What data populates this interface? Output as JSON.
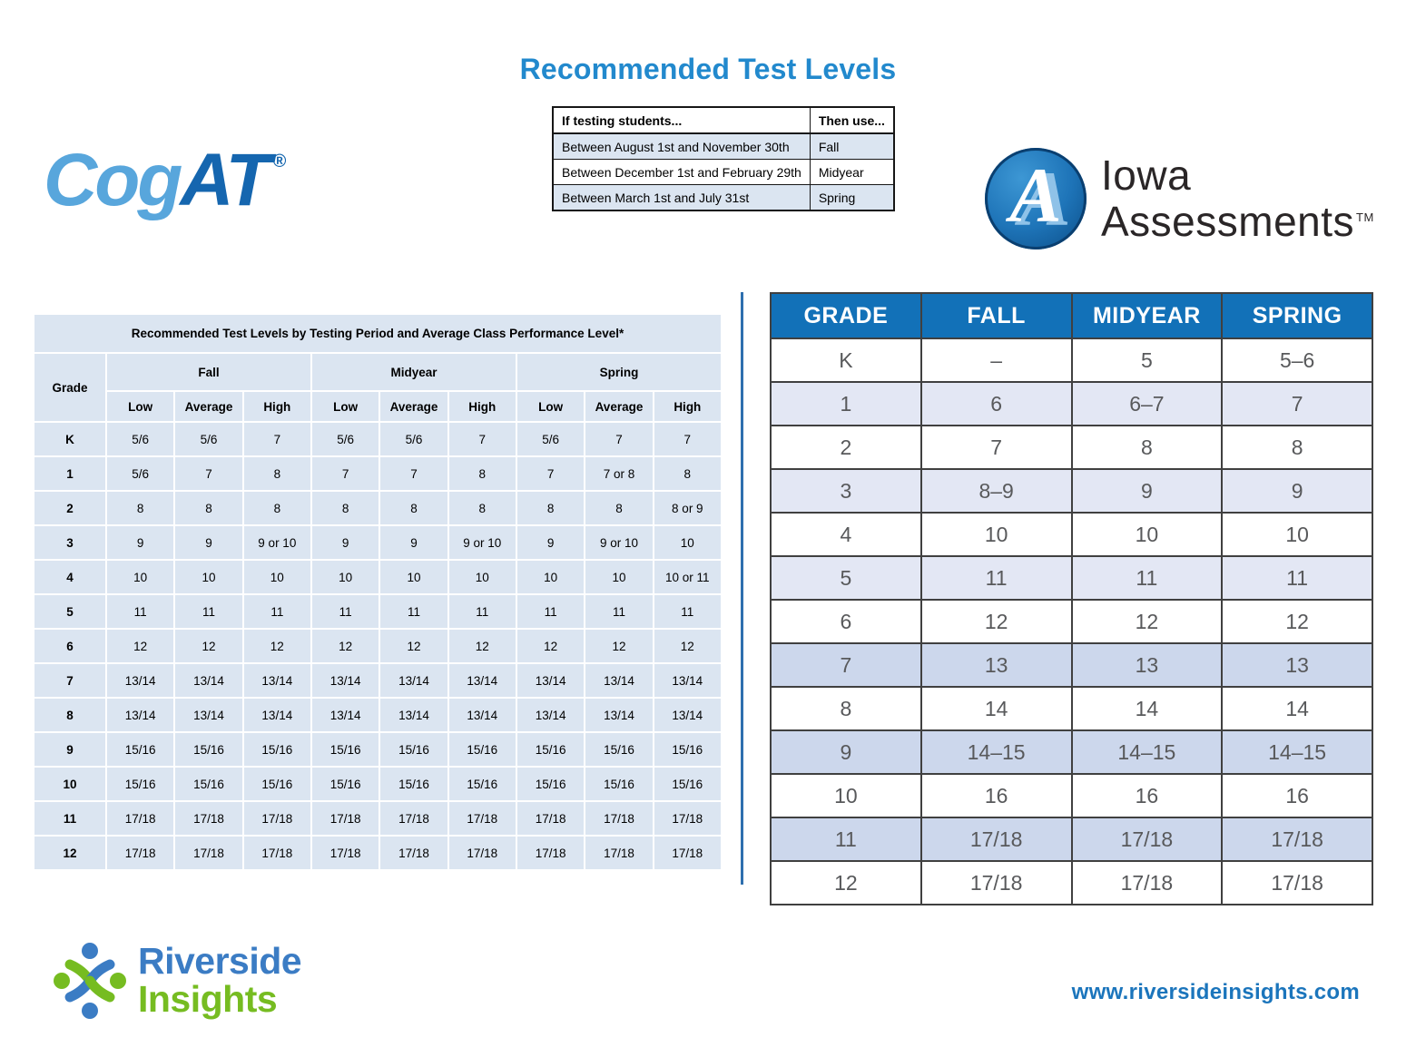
{
  "title": "Recommended Test Levels",
  "website": "www.riversideinsights.com",
  "colors": {
    "title_blue": "#2289cd",
    "right_table_header_blue": "#1271b8",
    "table_cell_light_blue": "#dbe5f1",
    "right_row_light": "#e3e7f4",
    "right_row_medium": "#ccd7ec",
    "right_table_text_gray": "#58595b",
    "divider_blue": "#2e6fae",
    "cogat_light_blue": "#58a6dc",
    "cogat_dark_blue": "#1566af",
    "riverside_blue": "#3b7cc4",
    "riverside_green": "#76bc21",
    "website_blue": "#1b75bc"
  },
  "logos": {
    "cogat": {
      "part1": "Cog",
      "part2": "AT",
      "registered": "®"
    },
    "iowa": {
      "letter": "A",
      "line1": "Iowa",
      "line2": "Assessments",
      "trademark": "TM"
    },
    "riverside": {
      "line1": "Riverside",
      "line2": "Insights"
    }
  },
  "period_table": {
    "headers": [
      "If testing students...",
      "Then use..."
    ],
    "rows": [
      [
        "Between August 1st and November 30th",
        "Fall"
      ],
      [
        "Between December 1st and February 29th",
        "Midyear"
      ],
      [
        "Between March 1st  and July 31st",
        "Spring"
      ]
    ]
  },
  "left_table": {
    "title": "Recommended Test Levels by Testing Period and Average Class Performance Level*",
    "grade_label": "Grade",
    "periods": [
      "Fall",
      "Midyear",
      "Spring"
    ],
    "levels": [
      "Low",
      "Average",
      "High"
    ],
    "rows": [
      {
        "grade": "K",
        "values": [
          "5/6",
          "5/6",
          "7",
          "5/6",
          "5/6",
          "7",
          "5/6",
          "7",
          "7"
        ]
      },
      {
        "grade": "1",
        "values": [
          "5/6",
          "7",
          "8",
          "7",
          "7",
          "8",
          "7",
          "7 or 8",
          "8"
        ]
      },
      {
        "grade": "2",
        "values": [
          "8",
          "8",
          "8",
          "8",
          "8",
          "8",
          "8",
          "8",
          "8 or 9"
        ]
      },
      {
        "grade": "3",
        "values": [
          "9",
          "9",
          "9 or 10",
          "9",
          "9",
          "9 or 10",
          "9",
          "9 or 10",
          "10"
        ]
      },
      {
        "grade": "4",
        "values": [
          "10",
          "10",
          "10",
          "10",
          "10",
          "10",
          "10",
          "10",
          "10 or 11"
        ]
      },
      {
        "grade": "5",
        "values": [
          "11",
          "11",
          "11",
          "11",
          "11",
          "11",
          "11",
          "11",
          "11"
        ]
      },
      {
        "grade": "6",
        "values": [
          "12",
          "12",
          "12",
          "12",
          "12",
          "12",
          "12",
          "12",
          "12"
        ]
      },
      {
        "grade": "7",
        "values": [
          "13/14",
          "13/14",
          "13/14",
          "13/14",
          "13/14",
          "13/14",
          "13/14",
          "13/14",
          "13/14"
        ]
      },
      {
        "grade": "8",
        "values": [
          "13/14",
          "13/14",
          "13/14",
          "13/14",
          "13/14",
          "13/14",
          "13/14",
          "13/14",
          "13/14"
        ]
      },
      {
        "grade": "9",
        "values": [
          "15/16",
          "15/16",
          "15/16",
          "15/16",
          "15/16",
          "15/16",
          "15/16",
          "15/16",
          "15/16"
        ]
      },
      {
        "grade": "10",
        "values": [
          "15/16",
          "15/16",
          "15/16",
          "15/16",
          "15/16",
          "15/16",
          "15/16",
          "15/16",
          "15/16"
        ]
      },
      {
        "grade": "11",
        "values": [
          "17/18",
          "17/18",
          "17/18",
          "17/18",
          "17/18",
          "17/18",
          "17/18",
          "17/18",
          "17/18"
        ]
      },
      {
        "grade": "12",
        "values": [
          "17/18",
          "17/18",
          "17/18",
          "17/18",
          "17/18",
          "17/18",
          "17/18",
          "17/18",
          "17/18"
        ]
      }
    ]
  },
  "right_table": {
    "headers": [
      "GRADE",
      "FALL",
      "MIDYEAR",
      "SPRING"
    ],
    "rows": [
      {
        "cells": [
          "K",
          "–",
          "5",
          "5–6"
        ],
        "shade": "none"
      },
      {
        "cells": [
          "1",
          "6",
          "6–7",
          "7"
        ],
        "shade": "light"
      },
      {
        "cells": [
          "2",
          "7",
          "8",
          "8"
        ],
        "shade": "none"
      },
      {
        "cells": [
          "3",
          "8–9",
          "9",
          "9"
        ],
        "shade": "light"
      },
      {
        "cells": [
          "4",
          "10",
          "10",
          "10"
        ],
        "shade": "none"
      },
      {
        "cells": [
          "5",
          "11",
          "11",
          "11"
        ],
        "shade": "light"
      },
      {
        "cells": [
          "6",
          "12",
          "12",
          "12"
        ],
        "shade": "none"
      },
      {
        "cells": [
          "7",
          "13",
          "13",
          "13"
        ],
        "shade": "medium"
      },
      {
        "cells": [
          "8",
          "14",
          "14",
          "14"
        ],
        "shade": "none"
      },
      {
        "cells": [
          "9",
          "14–15",
          "14–15",
          "14–15"
        ],
        "shade": "medium"
      },
      {
        "cells": [
          "10",
          "16",
          "16",
          "16"
        ],
        "shade": "none"
      },
      {
        "cells": [
          "11",
          "17/18",
          "17/18",
          "17/18"
        ],
        "shade": "medium"
      },
      {
        "cells": [
          "12",
          "17/18",
          "17/18",
          "17/18"
        ],
        "shade": "none"
      }
    ]
  }
}
